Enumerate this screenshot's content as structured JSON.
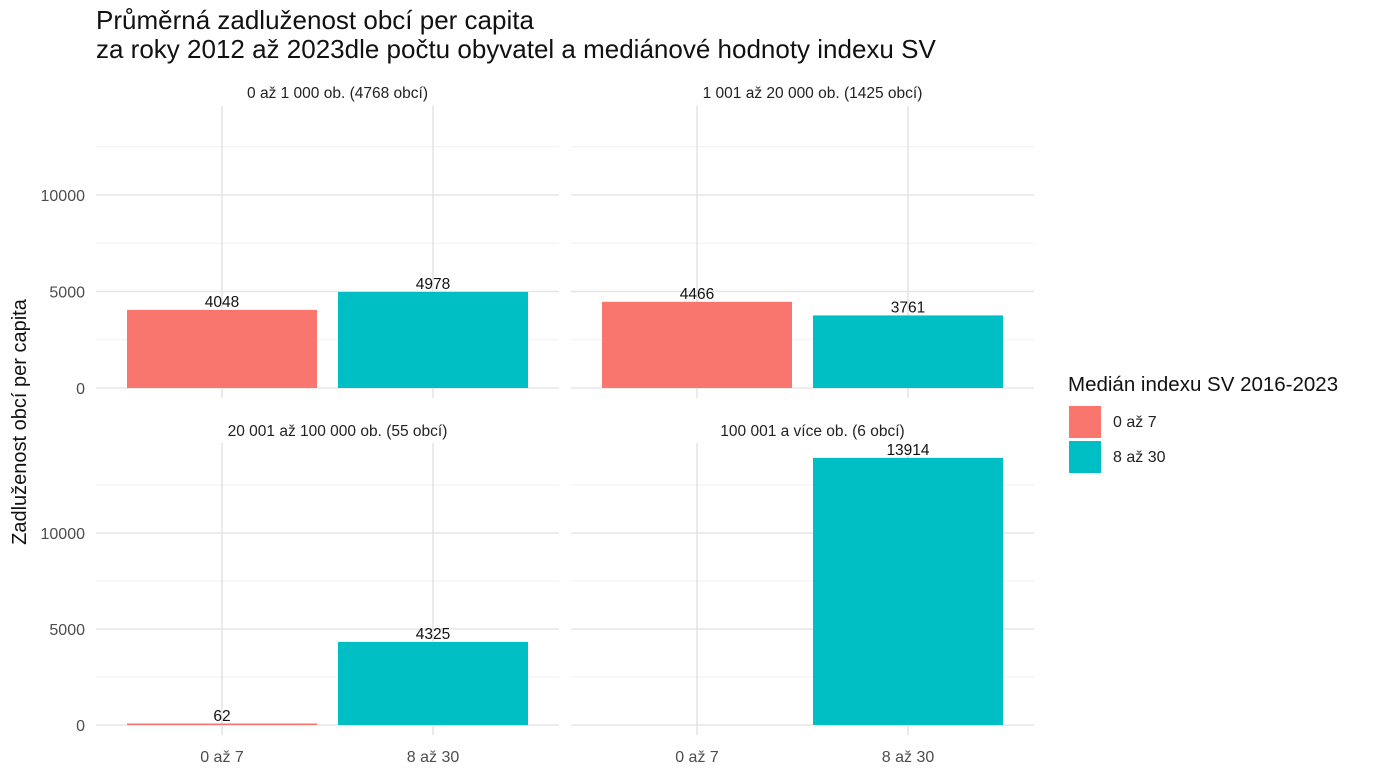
{
  "chart_data": {
    "type": "bar",
    "title": "Průměrná zadluženost obcí per capita",
    "subtitle": "za roky 2012 až 2023dle počtu obyvatel a mediánové hodnoty indexu SV",
    "xlabel": "",
    "ylabel": "Zadluženost obcí per capita",
    "categories": [
      "0 až 7",
      "8 až 30"
    ],
    "ylim": [
      0,
      14500
    ],
    "yticks": [
      0,
      5000,
      10000
    ],
    "grid": true,
    "colors": {
      "0 až 7": "#F8766D",
      "8 až 30": "#00BFC4"
    },
    "legend": {
      "title": "Medián indexu SV 2016-2023",
      "placement": "right",
      "entries": [
        "0 až 7",
        "8 až 30"
      ]
    },
    "facets": [
      {
        "title": "0 až 1 000 ob. (4768 obcí)",
        "values": [
          4048,
          4978
        ]
      },
      {
        "title": "1 001 až 20 000 ob. (1425 obcí)",
        "values": [
          4466,
          3761
        ]
      },
      {
        "title": "20 001 až 100 000 ob. (55 obcí)",
        "values": [
          62,
          4325
        ]
      },
      {
        "title": "100 001 a více ob. (6 obcí)",
        "values": [
          null,
          13914
        ]
      }
    ]
  }
}
